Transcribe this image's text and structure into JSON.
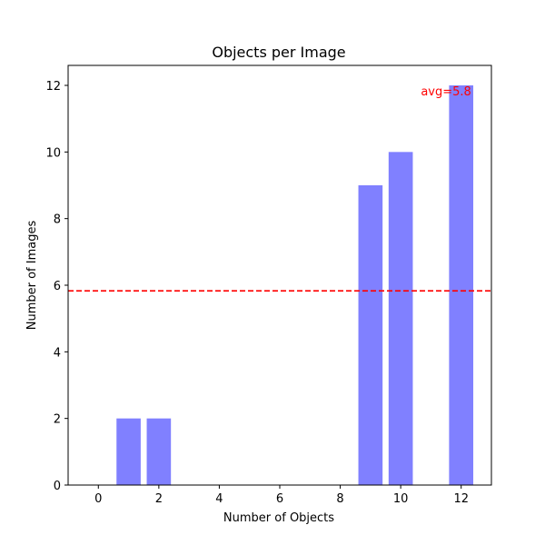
{
  "chart_data": {
    "type": "bar",
    "title": "Objects per Image",
    "xlabel": "Number of Objects",
    "ylabel": "Number of Images",
    "x": [
      1,
      2,
      9,
      10,
      12
    ],
    "values": [
      2,
      2,
      9,
      10,
      12
    ],
    "xlim": [
      -1,
      13
    ],
    "ylim": [
      0,
      12.6
    ],
    "xticks": [
      0,
      2,
      4,
      6,
      8,
      10,
      12
    ],
    "yticks": [
      0,
      2,
      4,
      6,
      8,
      10,
      12
    ],
    "bar_color": "#8080ff",
    "grid": false,
    "reference_line": {
      "y": 5.83,
      "color": "#ff0000",
      "style": "dashed",
      "label": "avg=5.8"
    }
  }
}
